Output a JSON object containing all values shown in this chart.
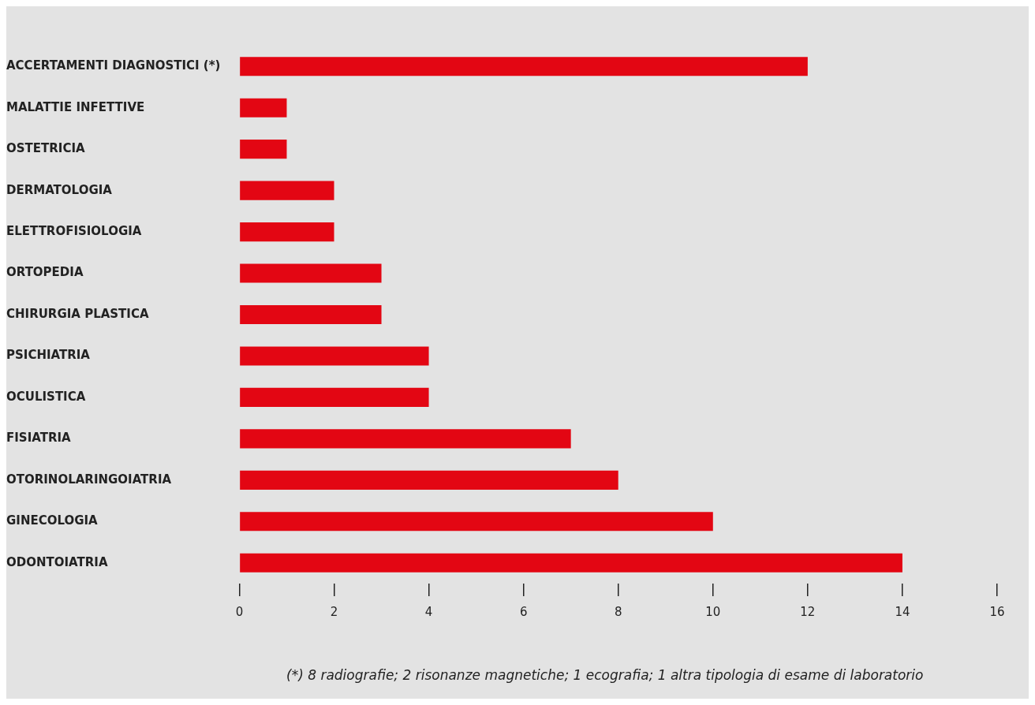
{
  "chart_data": {
    "type": "bar",
    "orientation": "horizontal",
    "categories": [
      "ACCERTAMENTI DIAGNOSTICI (*)",
      "MALATTIE INFETTIVE",
      "OSTETRICIA",
      "DERMATOLOGIA",
      "ELETTROFISIOLOGIA",
      "ORTOPEDIA",
      "CHIRURGIA PLASTICA",
      "PSICHIATRIA",
      "OCULISTICA",
      "FISIATRIA",
      "OTORINOLARINGOIATRIA",
      "GINECOLOGIA",
      "ODONTOIATRIA"
    ],
    "values": [
      12,
      1,
      1,
      2,
      2,
      3,
      3,
      4,
      4,
      7,
      8,
      10,
      14
    ],
    "color": "#e30613",
    "xlim": [
      0,
      16
    ],
    "xticks": [
      0,
      2,
      4,
      6,
      8,
      10,
      12,
      14,
      16
    ],
    "annotations": [
      "(*) 8 radiografie; 2 risonanze magnetiche; 1 ecografia; 1 altra tipologia di esame di laboratorio"
    ]
  }
}
